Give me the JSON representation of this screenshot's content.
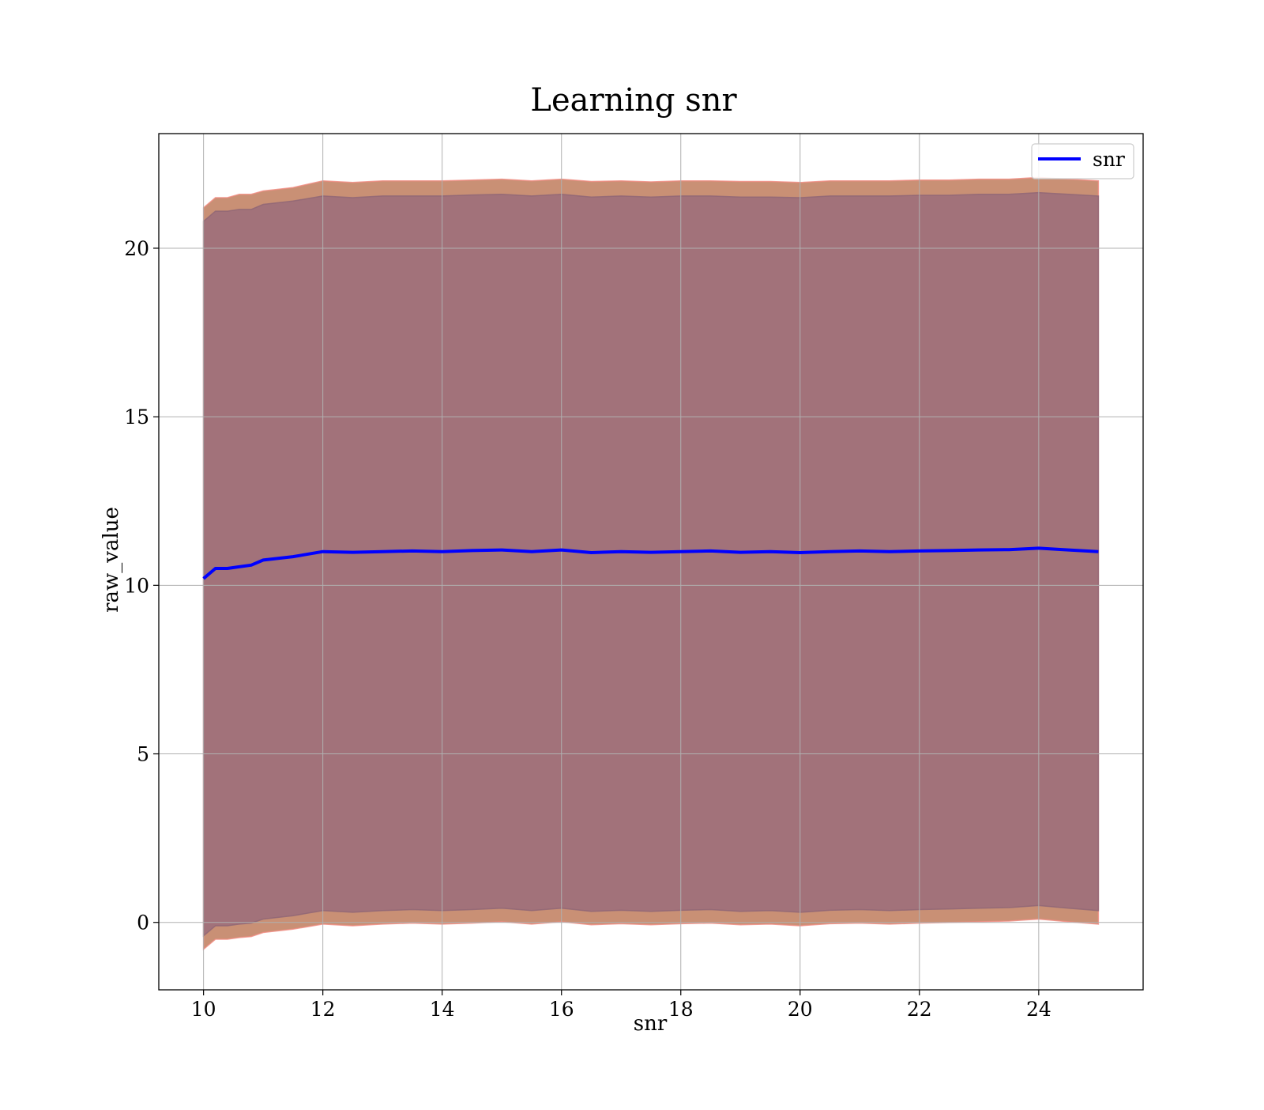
{
  "chart_data": {
    "type": "line",
    "title": "Learning snr",
    "xlabel": "snr",
    "ylabel": "raw_value",
    "xlim": [
      9.25,
      25.75
    ],
    "ylim": [
      -2,
      23.4
    ],
    "xticks": [
      10,
      12,
      14,
      16,
      18,
      20,
      22,
      24
    ],
    "yticks": [
      0,
      5,
      10,
      15,
      20
    ],
    "grid": true,
    "legend": {
      "position": "upper right",
      "entries": [
        "snr"
      ]
    },
    "colors": {
      "line": "#0000ff",
      "outer_band": "#c99075",
      "inner_band": "#a2727a",
      "outer_edge": "#f08a80",
      "inner_edge": "#8f6575",
      "grid": "#b0b0b0"
    },
    "series": [
      {
        "name": "snr",
        "x": [
          10,
          10.2,
          10.4,
          10.6,
          10.8,
          11,
          11.5,
          12,
          12.5,
          13,
          13.5,
          14,
          14.5,
          15,
          15.5,
          16,
          16.5,
          17,
          17.5,
          18,
          18.5,
          19,
          19.5,
          20,
          20.5,
          21,
          21.5,
          22,
          22.5,
          23,
          23.5,
          24,
          24.5,
          25
        ],
        "y": [
          10.2,
          10.5,
          10.5,
          10.55,
          10.6,
          10.75,
          10.85,
          11.0,
          10.98,
          11.0,
          11.02,
          11.0,
          11.03,
          11.05,
          11.0,
          11.05,
          10.97,
          11.0,
          10.98,
          11.0,
          11.02,
          10.98,
          11.0,
          10.97,
          11.0,
          11.02,
          11.0,
          11.02,
          11.03,
          11.05,
          11.06,
          11.1,
          11.05,
          11.0
        ],
        "outer_upper": [
          21.2,
          21.5,
          21.5,
          21.6,
          21.6,
          21.7,
          21.8,
          22.0,
          21.95,
          22.0,
          22.0,
          22.0,
          22.02,
          22.05,
          22.0,
          22.05,
          21.98,
          22.0,
          21.97,
          22.0,
          22.0,
          21.98,
          21.98,
          21.95,
          22.0,
          22.0,
          22.0,
          22.02,
          22.02,
          22.05,
          22.05,
          22.1,
          22.05,
          22.0
        ],
        "inner_upper": [
          20.8,
          21.1,
          21.1,
          21.15,
          21.15,
          21.3,
          21.4,
          21.55,
          21.5,
          21.55,
          21.55,
          21.55,
          21.58,
          21.6,
          21.55,
          21.6,
          21.52,
          21.55,
          21.52,
          21.55,
          21.55,
          21.52,
          21.52,
          21.5,
          21.55,
          21.55,
          21.55,
          21.57,
          21.57,
          21.6,
          21.6,
          21.65,
          21.6,
          21.55
        ],
        "inner_lower": [
          -0.4,
          -0.1,
          -0.1,
          -0.05,
          -0.02,
          0.1,
          0.2,
          0.35,
          0.3,
          0.35,
          0.38,
          0.35,
          0.38,
          0.42,
          0.35,
          0.42,
          0.33,
          0.36,
          0.33,
          0.36,
          0.38,
          0.33,
          0.35,
          0.3,
          0.36,
          0.38,
          0.35,
          0.38,
          0.4,
          0.42,
          0.44,
          0.5,
          0.42,
          0.35
        ],
        "outer_lower": [
          -0.8,
          -0.5,
          -0.5,
          -0.45,
          -0.42,
          -0.3,
          -0.2,
          -0.05,
          -0.1,
          -0.05,
          -0.02,
          -0.05,
          -0.02,
          0.02,
          -0.05,
          0.02,
          -0.07,
          -0.04,
          -0.07,
          -0.04,
          -0.02,
          -0.07,
          -0.05,
          -0.1,
          -0.04,
          -0.02,
          -0.05,
          -0.02,
          0.0,
          0.02,
          0.04,
          0.1,
          0.02,
          -0.05
        ]
      }
    ]
  }
}
